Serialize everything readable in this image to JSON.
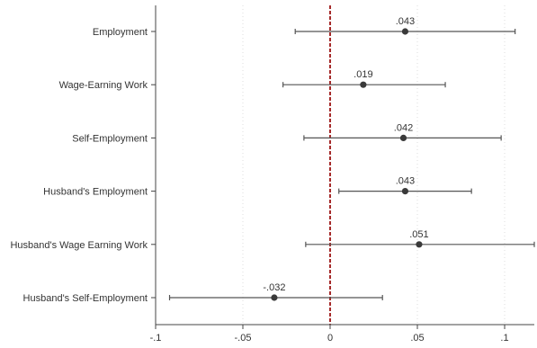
{
  "chart_data": {
    "type": "scatter",
    "subtype": "coefficient-plot",
    "categories": [
      "Employment",
      "Wage-Earning Work",
      "Self-Employment",
      "Husband's Employment",
      "Husband's Wage Earning Work",
      "Husband's Self-Employment"
    ],
    "estimates": [
      0.043,
      0.019,
      0.042,
      0.043,
      0.051,
      -0.032
    ],
    "estimate_labels": [
      ".043",
      ".019",
      ".042",
      ".043",
      ".051",
      "-.032"
    ],
    "ci_low": [
      -0.02,
      -0.027,
      -0.015,
      0.005,
      -0.014,
      -0.092
    ],
    "ci_high": [
      0.106,
      0.066,
      0.098,
      0.081,
      0.117,
      0.03
    ],
    "xlim": [
      -0.1,
      0.117
    ],
    "xticks": [
      -0.1,
      -0.05,
      0,
      0.05,
      0.1
    ],
    "xtick_labels": [
      "-.1",
      "-.05",
      "0",
      ".05",
      ".1"
    ],
    "reference_line": {
      "x": 0,
      "style": "dashed",
      "color": "#a52a2a"
    },
    "grid": "vertical-dotted",
    "colors": {
      "marker": "#3a3a3a",
      "ci": "#555555",
      "grid": "#dddddd",
      "axis": "#444444"
    }
  }
}
